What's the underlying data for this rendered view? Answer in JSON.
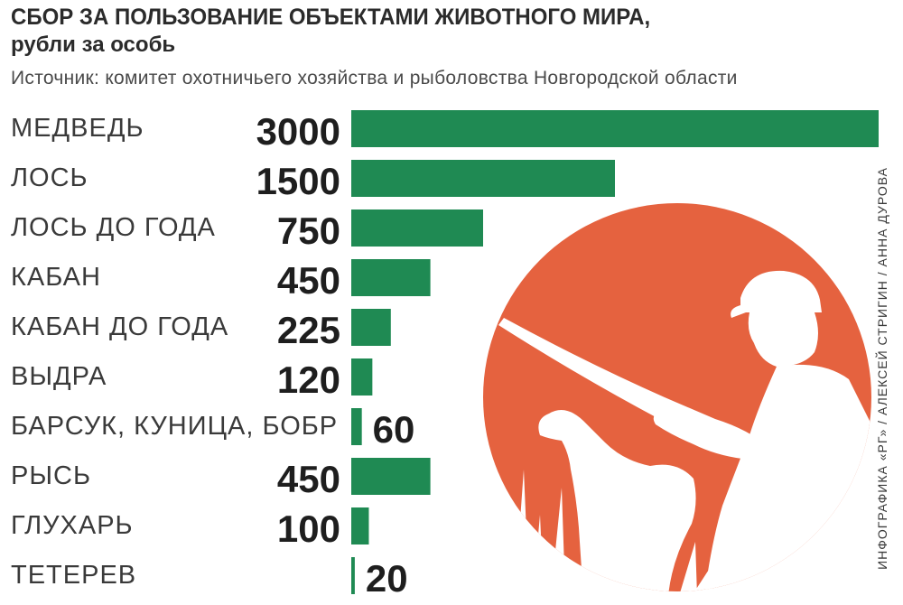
{
  "header": {
    "title": "СБОР ЗА ПОЛЬЗОВАНИЕ ОБЪЕКТАМИ ЖИВОТНОГО МИРА,",
    "subtitle": "рубли за особь",
    "source": "Источник: комитет охотничьего хозяйства и рыболовства Новгородской области"
  },
  "credit": "ИНФОГРАФИКА «РГ» / АЛЕКСЕЙ СТРИГИН / АННА ДУРОВА",
  "colors": {
    "bar": "#1f8a53",
    "illustration": "#e5623f",
    "text": "#2b2b2b"
  },
  "illustration": {
    "icon": "hunter-with-dog-icon"
  },
  "chart_data": {
    "type": "bar",
    "orientation": "horizontal",
    "title": "СБОР ЗА ПОЛЬЗОВАНИЕ ОБЪЕКТАМИ ЖИВОТНОГО МИРА,",
    "subtitle": "рубли за особь",
    "categories": [
      "МЕДВЕДЬ",
      "ЛОСЬ",
      "ЛОСЬ ДО ГОДА",
      "КАБАН",
      "КАБАН ДО ГОДА",
      "ВЫДРА",
      "БАРСУК, КУНИЦА, БОБР",
      "РЫСЬ",
      "ГЛУХАРЬ",
      "ТЕТЕРЕВ"
    ],
    "values": [
      3000,
      1500,
      750,
      450,
      225,
      120,
      60,
      450,
      100,
      20
    ],
    "value_labels": [
      "3000",
      "1500",
      "750",
      "450",
      "225",
      "120",
      "60",
      "450",
      "100",
      "20"
    ],
    "xlim": [
      0,
      3000
    ],
    "grid": false,
    "data_labels": true
  }
}
